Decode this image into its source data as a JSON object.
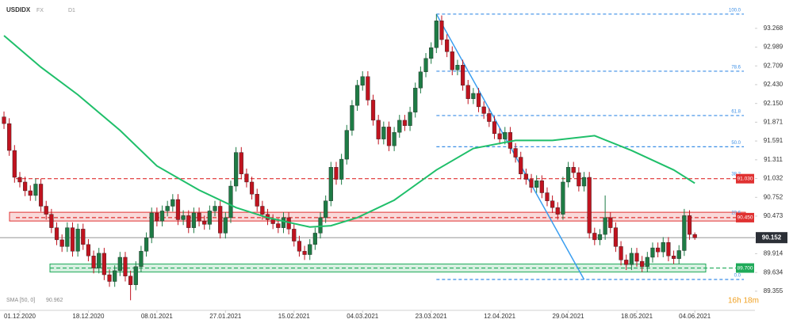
{
  "chart_data": {
    "type": "candlestick",
    "title": "USDIDX",
    "market": "FX",
    "timeframe": "D1",
    "categories": [
      null,
      null,
      null,
      "01.12.2020",
      null,
      null,
      null,
      null,
      null,
      null,
      null,
      null,
      null,
      null,
      null,
      null,
      "18.12.2020",
      null,
      null,
      null,
      null,
      null,
      null,
      null,
      null,
      null,
      null,
      null,
      null,
      "08.01.2021",
      null,
      null,
      null,
      null,
      null,
      null,
      null,
      null,
      null,
      null,
      null,
      null,
      "27.01.2021",
      null,
      null,
      null,
      null,
      null,
      null,
      null,
      null,
      null,
      null,
      null,
      null,
      "15.02.2021",
      null,
      null,
      null,
      null,
      null,
      null,
      null,
      null,
      null,
      null,
      null,
      null,
      "04.03.2021",
      null,
      null,
      null,
      null,
      null,
      null,
      null,
      null,
      null,
      null,
      null,
      null,
      "23.03.2021",
      null,
      null,
      null,
      null,
      null,
      null,
      null,
      null,
      null,
      null,
      null,
      null,
      "12.04.2021",
      null,
      null,
      null,
      null,
      null,
      null,
      null,
      null,
      null,
      null,
      null,
      null,
      "29.04.2021",
      null,
      null,
      null,
      null,
      null,
      null,
      null,
      null,
      null,
      null,
      null,
      null,
      "18.05.2021",
      null,
      null,
      null,
      null,
      null,
      null,
      null,
      null,
      null,
      null,
      "04.06.2021"
    ],
    "open": [
      91.95,
      91.85,
      91.45,
      91.05,
      90.98,
      90.85,
      90.78,
      90.95,
      90.62,
      90.5,
      90.3,
      90.12,
      90.02,
      90.3,
      89.95,
      90.28,
      90.05,
      89.88,
      89.7,
      89.92,
      89.6,
      89.5,
      89.66,
      89.86,
      89.58,
      89.45,
      89.72,
      89.95,
      90.15,
      90.52,
      90.4,
      90.55,
      90.62,
      90.72,
      90.42,
      90.48,
      90.3,
      90.52,
      90.4,
      90.35,
      90.55,
      90.62,
      90.22,
      90.45,
      90.92,
      91.42,
      91.1,
      90.98,
      90.8,
      90.62,
      90.5,
      90.42,
      90.36,
      90.3,
      90.45,
      90.28,
      90.1,
      89.95,
      89.9,
      90.05,
      90.22,
      90.45,
      90.7,
      91.2,
      91.02,
      91.32,
      91.75,
      92.12,
      92.42,
      92.55,
      92.2,
      91.9,
      91.62,
      91.8,
      91.52,
      91.72,
      91.9,
      91.82,
      92.02,
      92.38,
      92.62,
      92.82,
      92.98,
      93.38,
      93.1,
      92.92,
      92.65,
      92.72,
      92.42,
      92.22,
      92.3,
      92.1,
      92.0,
      91.88,
      91.7,
      91.62,
      91.72,
      91.48,
      91.35,
      91.1,
      91.02,
      90.9,
      91.0,
      90.82,
      90.7,
      90.6,
      90.5,
      90.98,
      91.2,
      91.12,
      90.92,
      91.05,
      90.22,
      90.12,
      90.2,
      90.45,
      90.3,
      90.02,
      89.82,
      89.75,
      89.92,
      89.8,
      89.72,
      89.86,
      90.0,
      89.94,
      90.08,
      89.88,
      89.84,
      89.96,
      90.48,
      90.2
    ],
    "high": [
      92.03,
      91.93,
      91.53,
      91.13,
      91.06,
      90.93,
      91.03,
      91.03,
      90.7,
      90.58,
      90.38,
      90.2,
      90.38,
      90.38,
      90.36,
      90.36,
      90.13,
      89.96,
      90.0,
      90.0,
      89.68,
      89.74,
      89.94,
      89.94,
      89.66,
      89.8,
      90.03,
      90.23,
      90.6,
      90.6,
      90.63,
      90.7,
      90.8,
      90.8,
      90.56,
      90.56,
      90.6,
      90.6,
      90.48,
      90.63,
      90.7,
      90.7,
      90.53,
      91.0,
      91.5,
      91.5,
      91.18,
      91.06,
      90.88,
      90.7,
      90.58,
      90.5,
      90.44,
      90.53,
      90.53,
      90.36,
      90.18,
      90.03,
      90.13,
      90.3,
      90.53,
      90.78,
      91.28,
      91.28,
      91.4,
      91.83,
      92.2,
      92.5,
      92.63,
      92.63,
      92.28,
      91.98,
      91.88,
      91.88,
      91.8,
      91.98,
      91.98,
      92.1,
      92.46,
      92.7,
      92.9,
      93.06,
      93.48,
      93.46,
      93.18,
      93.0,
      92.8,
      92.8,
      92.5,
      92.38,
      92.38,
      92.18,
      92.08,
      91.96,
      91.78,
      91.8,
      91.8,
      91.56,
      91.43,
      91.18,
      91.1,
      91.08,
      91.08,
      90.9,
      90.78,
      90.68,
      91.06,
      91.28,
      91.28,
      91.2,
      91.13,
      91.13,
      90.3,
      90.28,
      90.78,
      90.53,
      90.38,
      90.1,
      89.9,
      90.0,
      90.0,
      89.88,
      89.94,
      90.08,
      90.08,
      90.16,
      90.16,
      89.96,
      90.04,
      90.58,
      90.56,
      90.23
    ],
    "low": [
      91.77,
      91.37,
      90.97,
      90.9,
      90.77,
      90.7,
      90.7,
      90.54,
      90.42,
      90.22,
      90.04,
      89.94,
      89.94,
      89.87,
      89.87,
      89.97,
      89.8,
      89.62,
      89.62,
      89.52,
      89.42,
      89.42,
      89.58,
      89.5,
      89.22,
      89.37,
      89.64,
      89.87,
      90.07,
      90.32,
      90.32,
      90.47,
      90.54,
      90.34,
      90.34,
      90.22,
      90.22,
      90.32,
      90.27,
      90.27,
      90.47,
      90.14,
      90.14,
      90.37,
      90.84,
      91.02,
      90.9,
      90.72,
      90.54,
      90.42,
      90.34,
      90.28,
      90.22,
      90.22,
      90.2,
      90.02,
      89.87,
      89.82,
      89.82,
      89.97,
      90.14,
      90.37,
      90.62,
      90.94,
      90.94,
      91.24,
      91.67,
      92.04,
      92.34,
      92.12,
      91.82,
      91.54,
      91.54,
      91.44,
      91.44,
      91.64,
      91.74,
      91.74,
      91.94,
      92.3,
      92.54,
      92.74,
      92.9,
      93.02,
      92.84,
      92.57,
      92.57,
      92.34,
      92.14,
      92.14,
      92.02,
      91.92,
      91.8,
      91.62,
      91.54,
      91.54,
      91.4,
      91.27,
      91.02,
      90.94,
      90.82,
      90.82,
      90.74,
      90.62,
      90.52,
      90.42,
      90.42,
      90.9,
      91.04,
      90.84,
      90.84,
      90.14,
      90.04,
      90.04,
      90.12,
      90.22,
      89.94,
      89.74,
      89.67,
      89.67,
      89.72,
      89.64,
      89.64,
      89.78,
      89.86,
      89.86,
      89.8,
      89.76,
      89.76,
      89.88,
      90.12,
      90.12
    ],
    "close": [
      91.85,
      91.45,
      91.05,
      90.98,
      90.85,
      90.78,
      90.95,
      90.62,
      90.5,
      90.3,
      90.12,
      90.02,
      90.3,
      89.95,
      90.28,
      90.05,
      89.88,
      89.7,
      89.92,
      89.6,
      89.5,
      89.66,
      89.86,
      89.58,
      89.45,
      89.72,
      89.95,
      90.15,
      90.52,
      90.4,
      90.55,
      90.62,
      90.72,
      90.42,
      90.48,
      90.3,
      90.52,
      90.4,
      90.35,
      90.55,
      90.62,
      90.22,
      90.45,
      90.92,
      91.42,
      91.1,
      90.98,
      90.8,
      90.62,
      90.5,
      90.42,
      90.36,
      90.3,
      90.45,
      90.28,
      90.1,
      89.95,
      89.9,
      90.05,
      90.22,
      90.45,
      90.7,
      91.2,
      91.02,
      91.32,
      91.75,
      92.12,
      92.42,
      92.55,
      92.2,
      91.9,
      91.62,
      91.8,
      91.52,
      91.72,
      91.9,
      91.82,
      92.02,
      92.38,
      92.62,
      92.82,
      92.98,
      93.38,
      93.1,
      92.92,
      92.65,
      92.72,
      92.42,
      92.22,
      92.3,
      92.1,
      92.0,
      91.88,
      91.7,
      91.62,
      91.72,
      91.48,
      91.35,
      91.1,
      91.02,
      90.9,
      91.0,
      90.82,
      90.7,
      90.6,
      90.5,
      90.98,
      91.2,
      91.12,
      90.92,
      91.05,
      90.22,
      90.12,
      90.2,
      90.45,
      90.3,
      90.02,
      89.82,
      89.75,
      89.92,
      89.8,
      89.72,
      89.86,
      90.0,
      89.94,
      90.08,
      89.88,
      89.84,
      89.96,
      90.48,
      90.2,
      90.15
    ],
    "up_color": "#1e7b45",
    "down_color": "#c0131f",
    "ylim": [
      89.07,
      93.69
    ],
    "yticks": [
      93.268,
      92.989,
      92.709,
      {
        "value": 92.43,
        "label": "92.430"
      },
      {
        "value": 92.15,
        "label": "92.150"
      },
      91.871,
      91.591,
      91.311,
      91.032,
      90.752,
      90.473,
      89.914,
      89.634,
      89.355
    ],
    "sma": {
      "name": "SMA [50, 0]",
      "color": "#1fbf6a",
      "x": [
        0,
        7,
        14,
        22,
        29,
        37,
        44,
        50,
        58,
        62,
        67,
        74,
        82,
        89,
        97,
        104,
        112,
        119,
        127,
        131
      ],
      "values": [
        93.16,
        92.69,
        92.28,
        91.75,
        91.22,
        90.86,
        90.6,
        90.45,
        90.31,
        90.33,
        90.45,
        90.71,
        91.16,
        91.48,
        91.6,
        91.6,
        91.67,
        91.45,
        91.16,
        90.962
      ]
    },
    "zones": [
      {
        "values": [
          90.4,
          90.53
        ],
        "color": "#e03131"
      },
      {
        "values": [
          89.64,
          89.76
        ],
        "color": "#1faa59"
      }
    ],
    "levels": [
      {
        "value": 91.03,
        "label": "91.030",
        "color": "#e03131"
      },
      {
        "value": 90.45,
        "label": "90.450",
        "color": "#e03131"
      },
      {
        "value": 89.7,
        "label": "89.700",
        "color": "#1faa59"
      }
    ],
    "fibonacci": {
      "color": "#3a8ee6",
      "start": 82,
      "levels": [
        {
          "label": "100.0",
          "value": 93.48
        },
        {
          "label": "78.6",
          "value": 92.63
        },
        {
          "label": "61.8",
          "value": 91.97
        },
        {
          "label": "50.0",
          "value": 91.505
        },
        {
          "label": "38.2",
          "value": 91.04
        },
        {
          "label": "23.6",
          "value": 90.46
        },
        {
          "label": "0.0",
          "value": 89.53
        }
      ]
    },
    "trendline": {
      "color": "#3a9ef0",
      "x": [
        82,
        110
      ],
      "values": [
        93.48,
        89.53
      ]
    },
    "current_price": 90.152,
    "countdown": "16h 18m"
  }
}
